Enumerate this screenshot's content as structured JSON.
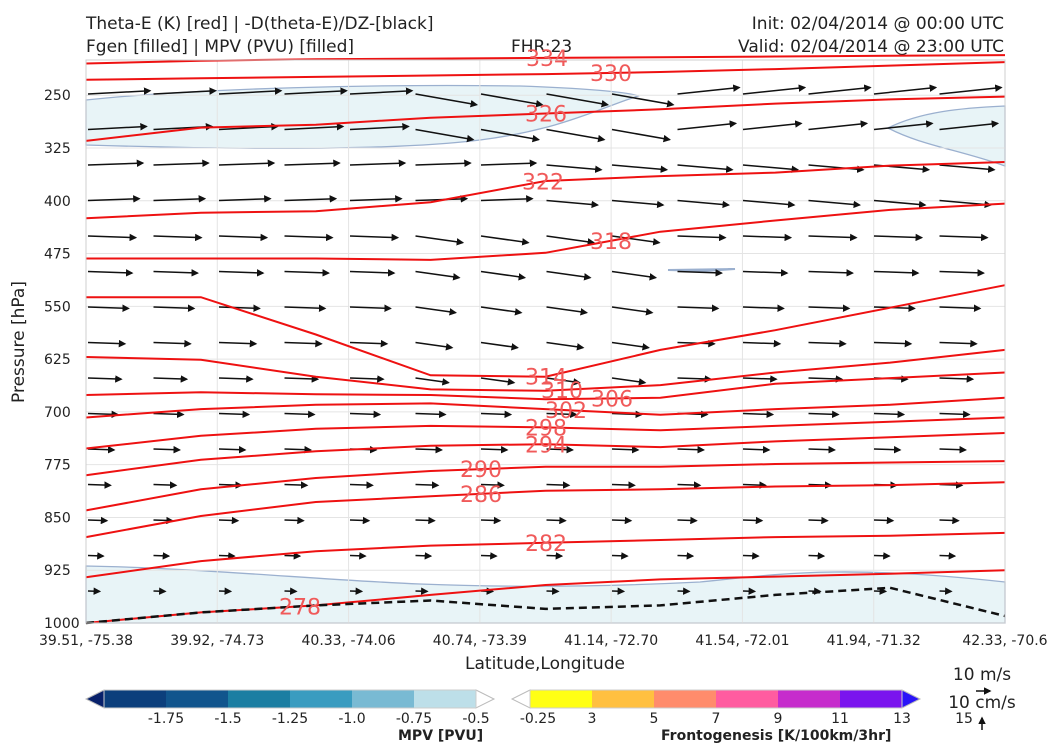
{
  "header": {
    "title_left_1": "Theta-E (K) [red] | -D(theta-E)/DZ-[black]",
    "title_left_2": "Fgen [filled] | MPV (PVU) [filled]",
    "fhr": "FHR:23",
    "init": "Init: 02/04/2014 @ 00:00 UTC",
    "valid": "Valid: 02/04/2014 @ 23:00 UTC"
  },
  "chart_data": {
    "type": "cross-section",
    "xlabel": "Latitude,Longitude",
    "ylabel": "Pressure [hPa]",
    "x_ticks": [
      "39.51, -75.38",
      "39.92, -74.73",
      "40.33, -74.06",
      "40.74, -73.39",
      "41.14, -72.70",
      "41.54, -72.01",
      "41.94, -71.32",
      "42.33, -70.6"
    ],
    "y_ticks": [
      250,
      325,
      400,
      475,
      550,
      625,
      700,
      775,
      850,
      925,
      1000
    ],
    "ylim": [
      1000,
      200
    ],
    "grid": true,
    "theta_e_contours": [
      {
        "label": "334",
        "y": [
          205,
          201,
          199,
          198,
          197,
          196,
          195,
          194,
          193
        ]
      },
      {
        "label": "330",
        "y": [
          228,
          226,
          224,
          222,
          220,
          217,
          213,
          208,
          203
        ]
      },
      {
        "label": "326",
        "y": [
          315,
          296,
          292,
          282,
          276,
          270,
          262,
          256,
          252
        ]
      },
      {
        "label": "322",
        "y": [
          425,
          417,
          415,
          402,
          372,
          365,
          360,
          350,
          345
        ]
      },
      {
        "label": "318",
        "y": [
          482,
          482,
          482,
          484,
          474,
          444,
          428,
          413,
          404
        ]
      },
      {
        "label": "314",
        "y": [
          537,
          537,
          590,
          648,
          650,
          612,
          584,
          552,
          520
        ]
      },
      {
        "label": "310",
        "y": [
          622,
          626,
          650,
          668,
          670,
          662,
          644,
          630,
          612
        ]
      },
      {
        "label": "306",
        "y": [
          676,
          672,
          675,
          676,
          682,
          680,
          660,
          652,
          644
        ]
      },
      {
        "label": "302",
        "y": [
          708,
          696,
          690,
          688,
          696,
          704,
          696,
          690,
          680
        ]
      },
      {
        "label": "298",
        "y": [
          752,
          734,
          724,
          720,
          722,
          726,
          720,
          714,
          708
        ]
      },
      {
        "label": "294",
        "y": [
          790,
          768,
          756,
          748,
          746,
          750,
          742,
          736,
          730
        ]
      },
      {
        "label": "290",
        "y": [
          840,
          810,
          794,
          784,
          778,
          778,
          774,
          772,
          770
        ]
      },
      {
        "label": "286",
        "y": [
          878,
          848,
          828,
          820,
          812,
          810,
          806,
          804,
          800
        ]
      },
      {
        "label": "282",
        "y": [
          935,
          912,
          898,
          890,
          886,
          882,
          878,
          876,
          872
        ]
      },
      {
        "label": "278",
        "y": [
          1000,
          985,
          975,
          960,
          946,
          938,
          934,
          930,
          925
        ]
      }
    ],
    "stability_contour_dashed": {
      "label": "0",
      "y": [
        1000,
        985,
        975,
        968,
        980,
        975,
        960,
        950,
        990
      ]
    },
    "mpv_colorbar": {
      "label": "MPV [PVU]",
      "ticks": [
        "-1.75",
        "-1.5",
        "-1.25",
        "-1.0",
        "-0.75",
        "-0.5",
        "-0.25"
      ],
      "colors": [
        "#08216b",
        "#0c3f7c",
        "#11558d",
        "#1b7ea2",
        "#3a9cc0",
        "#79bad3",
        "#bddfe9",
        "#ffffff"
      ]
    },
    "fgen_colorbar": {
      "label": "Frontogenesis [K/100km/3hr]",
      "ticks": [
        "3",
        "5",
        "7",
        "9",
        "11",
        "13",
        "15"
      ],
      "colors": [
        "#ffffff",
        "#ffff14",
        "#ffc040",
        "#ff8c6c",
        "#ff5ca0",
        "#c62ccc",
        "#7a14ee",
        "#2a14f8"
      ]
    },
    "vector_reference": {
      "horizontal": "10 m/s",
      "vertical": "10 cm/s"
    }
  }
}
